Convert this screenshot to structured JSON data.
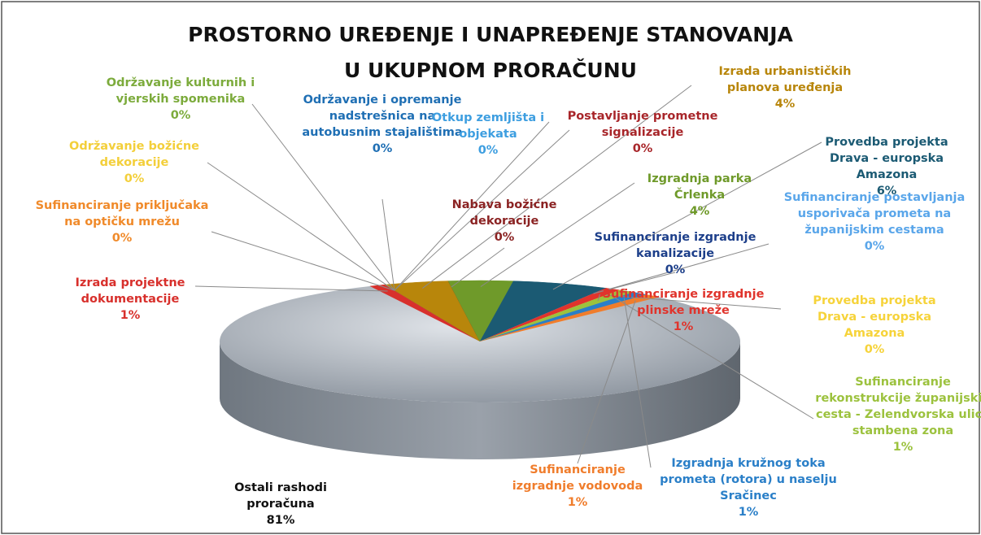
{
  "chart_data": {
    "type": "pie",
    "title": [
      "PROSTORNO UREĐENJE I UNAPREĐENJE STANOVANJA",
      "U UKUPNOM PRORAČUNU"
    ],
    "categories": [
      "Ostali rashodi proračuna",
      "Izrada projektne dokumentacije",
      "Sufinanciranje priključaka na optičku mrežu",
      "Održavanje božićne dekoracije",
      "Održavanje kulturnih i vjerskih spomenika",
      "Održavanje i opremanje nadstrešnica na autobusnim stajalištima",
      "Otkup zemljišta i objekata",
      "Postavljanje prometne signalizacije",
      "Izrada urbanističkih planova uređenja",
      "Nabava božićne dekoracije",
      "Izgradnja parka Črlenka",
      "Provedba projekta Drava - europska Amazona",
      "Sufinanciranje izgradnje kanalizacije",
      "Sufinanciranje postavljanja usporivača prometa na županijskim cestama",
      "Sufinanciranje izgradnje plinske mreže",
      "Provedba projekta Drava - europska Amazona",
      "Sufinanciranje rekonstrukcije županijskih cesta - Zelendvorska ulica stambena zona",
      "Izgradnja kružnog toka prometa (rotora) u naselju Sračinec",
      "Sufinanciranje izgradnje vodovoda"
    ],
    "values": [
      81,
      1,
      0,
      0,
      0,
      0,
      0,
      0,
      4,
      0,
      4,
      6,
      0,
      0,
      1,
      0,
      1,
      1,
      1
    ],
    "value_labels": [
      "81%",
      "1%",
      "0%",
      "0%",
      "0%",
      "0%",
      "0%",
      "0%",
      "4%",
      "0%",
      "4%",
      "6%",
      "0%",
      "0%",
      "1%",
      "0%",
      "1%",
      "1%",
      "1%"
    ],
    "colors": [
      "#a3aab3",
      "#d8302c",
      "#f08a2a",
      "#f3cf3a",
      "#7cab3c",
      "#1f6fb4",
      "#3d9ee0",
      "#a8262a",
      "#b8860b",
      "#8b2323",
      "#6f9a2a",
      "#1b5a73",
      "#1d3f8a",
      "#5aa6ea",
      "#e0342c",
      "#f6d33a",
      "#9cc23e",
      "#2a7fc8",
      "#f07d2c"
    ]
  }
}
